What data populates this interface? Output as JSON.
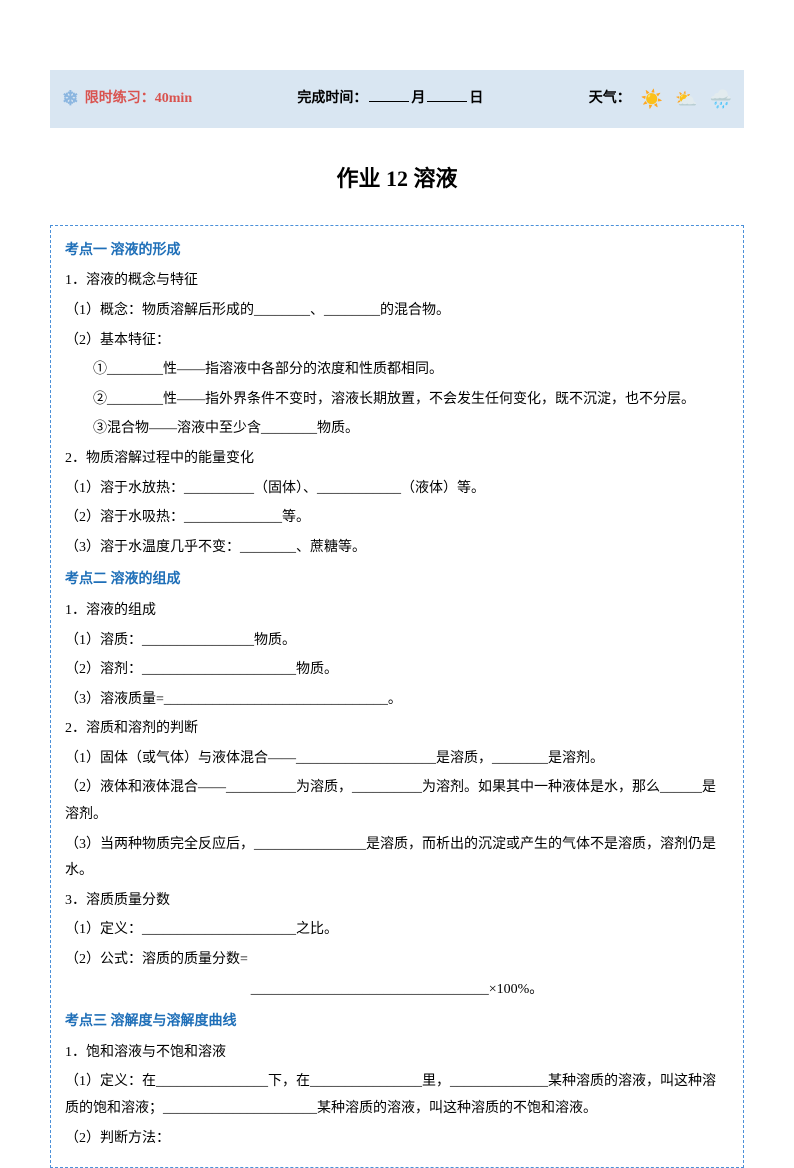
{
  "header": {
    "time_limit_label": "限时练习：",
    "time_limit_value": "40min",
    "completion_label": "完成时间：",
    "month_suffix": "月",
    "day_suffix": "日",
    "weather_label": "天气：",
    "colors": {
      "header_bg": "#d9e6f2",
      "time_limit_color": "#d9534f",
      "snowflake_color": "#8bb6e0"
    }
  },
  "title": "作业 12  溶液",
  "sections": [
    {
      "heading": "考点一 溶液的形成",
      "items": [
        {
          "text": "1．溶液的概念与特征"
        },
        {
          "text": "（1）概念：物质溶解后形成的________、________的混合物。"
        },
        {
          "text": "（2）基本特征："
        },
        {
          "text_indent": "①________性——指溶液中各部分的浓度和性质都相同。"
        },
        {
          "text_indent": "②________性——指外界条件不变时，溶液长期放置，不会发生任何变化，既不沉淀，也不分层。"
        },
        {
          "text_indent": "③混合物——溶液中至少含________物质。"
        },
        {
          "text": "2．物质溶解过程中的能量变化"
        },
        {
          "text": "（1）溶于水放热：__________（固体）、____________（液体）等。"
        },
        {
          "text": "（2）溶于水吸热：______________等。"
        },
        {
          "text": "（3）溶于水温度几乎不变：________、蔗糖等。"
        }
      ]
    },
    {
      "heading": "考点二 溶液的组成",
      "items": [
        {
          "text": "1．溶液的组成"
        },
        {
          "text": "（1）溶质：________________物质。"
        },
        {
          "text": "（2）溶剂：______________________物质。"
        },
        {
          "text": "（3）溶液质量=________________________________。"
        },
        {
          "text": "2．溶质和溶剂的判断"
        },
        {
          "text": "（1）固体（或气体）与液体混合——____________________是溶质，________是溶剂。"
        },
        {
          "text": "（2）液体和液体混合——__________为溶质，__________为溶剂。如果其中一种液体是水，那么______是溶剂。"
        },
        {
          "text": "（3）当两种物质完全反应后，________________是溶质，而析出的沉淀或产生的气体不是溶质，溶剂仍是水。"
        },
        {
          "text": "3．溶质质量分数"
        },
        {
          "text": "（1）定义：______________________之比。"
        },
        {
          "text": "（2）公式：溶质的质量分数="
        },
        {
          "text_center": "__________________________________×100%。"
        }
      ]
    },
    {
      "heading": "考点三 溶解度与溶解度曲线",
      "items": [
        {
          "text": "1．饱和溶液与不饱和溶液"
        },
        {
          "text": "（1）定义：在________________下，在________________里，______________某种溶质的溶液，叫这种溶质的饱和溶液；______________________某种溶质的溶液，叫这种溶质的不饱和溶液。"
        },
        {
          "text": "（2）判断方法："
        }
      ]
    }
  ],
  "styling": {
    "section_heading_color": "#1f6fb8",
    "border_color": "#4a90d9",
    "body_width": 794,
    "body_height": 1123,
    "title_fontsize": 22,
    "body_fontsize": 14,
    "line_height": 1.9
  }
}
